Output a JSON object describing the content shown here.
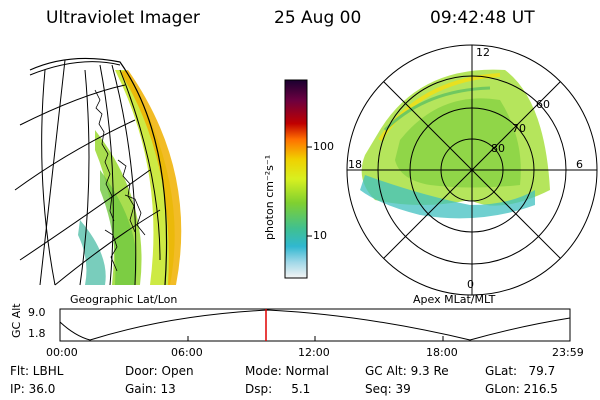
{
  "header": {
    "instrument": "Ultraviolet Imager",
    "date": "25 Aug 00",
    "time": "09:42:48 UT"
  },
  "left_panel": {
    "label": "Geographic Lat/Lon"
  },
  "right_panel": {
    "label": "Apex MLat/MLT",
    "mlt_labels": [
      "12",
      "18",
      "6",
      "0"
    ],
    "mlat_labels": [
      "60",
      "70",
      "80"
    ]
  },
  "colorbar": {
    "unit_label": "photon cm⁻²s⁻¹",
    "ticks": [
      "100",
      "10"
    ],
    "colors": [
      "#1a0030",
      "#4a0040",
      "#7a0010",
      "#b00000",
      "#e03000",
      "#ff8000",
      "#f0c000",
      "#e8f020",
      "#b0e020",
      "#70d030",
      "#40c080",
      "#30b8c8",
      "#80d0e0",
      "#d0e8f0",
      "#f4f4f4"
    ]
  },
  "timeline": {
    "ylabel": "GC Alt",
    "yticks": [
      "9.0",
      "1.8"
    ],
    "xticks": [
      "00:00",
      "06:00",
      "12:00",
      "18:00",
      "23:59"
    ],
    "marker_time": "09:42",
    "marker_color": "#e00000"
  },
  "footer": {
    "flt": "Flt: LBHL",
    "ip": "IP: 36.0",
    "door": "Door: Open",
    "gain": "Gain: 13",
    "mode": "Mode: Normal",
    "dsp": "Dsp:     5.1",
    "gcalt": "GC Alt: 9.3 Re",
    "seq": "Seq: 39",
    "glat": "GLat:   79.7",
    "glon": "GLon: 216.5"
  }
}
